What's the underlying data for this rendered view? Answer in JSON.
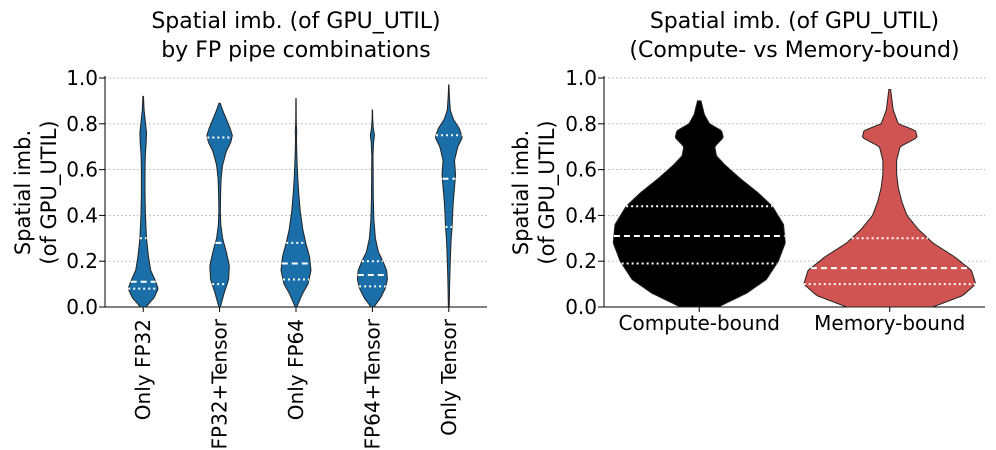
{
  "chart_data": [
    {
      "type": "violin",
      "title": [
        "Spatial imb. (of GPU_UTIL)",
        "by FP pipe combinations"
      ],
      "ylabel": [
        "Spatial imb.",
        "(of GPU_UTIL)"
      ],
      "ylim": [
        0,
        1.0
      ],
      "yticks": [
        "0.0",
        "0.2",
        "0.4",
        "0.6",
        "0.8",
        "1.0"
      ],
      "grid": "horizontal-dotted",
      "color": "#1b6fa8",
      "categories": [
        "Only FP32",
        "FP32+Tensor",
        "Only FP64",
        "FP64+Tensor",
        "Only Tensor"
      ],
      "violins": [
        {
          "name": "Only FP32",
          "min": 0.0,
          "max": 0.92,
          "q1": 0.08,
          "median": 0.11,
          "q3": 0.3,
          "profile": [
            [
              0.0,
              0.18
            ],
            [
              0.04,
              0.72
            ],
            [
              0.08,
              1.0
            ],
            [
              0.12,
              0.78
            ],
            [
              0.16,
              0.5
            ],
            [
              0.22,
              0.35
            ],
            [
              0.3,
              0.22
            ],
            [
              0.4,
              0.15
            ],
            [
              0.5,
              0.12
            ],
            [
              0.6,
              0.12
            ],
            [
              0.66,
              0.14
            ],
            [
              0.72,
              0.2
            ],
            [
              0.76,
              0.22
            ],
            [
              0.8,
              0.16
            ],
            [
              0.86,
              0.06
            ],
            [
              0.92,
              0.02
            ]
          ]
        },
        {
          "name": "FP32+Tensor",
          "min": 0.0,
          "max": 0.89,
          "q1": 0.1,
          "median": 0.28,
          "q3": 0.74,
          "profile": [
            [
              0.0,
              0.05
            ],
            [
              0.06,
              0.3
            ],
            [
              0.12,
              0.6
            ],
            [
              0.18,
              0.65
            ],
            [
              0.24,
              0.45
            ],
            [
              0.3,
              0.2
            ],
            [
              0.36,
              0.08
            ],
            [
              0.42,
              0.05
            ],
            [
              0.5,
              0.07
            ],
            [
              0.56,
              0.1
            ],
            [
              0.62,
              0.2
            ],
            [
              0.68,
              0.45
            ],
            [
              0.72,
              0.75
            ],
            [
              0.75,
              0.85
            ],
            [
              0.78,
              0.7
            ],
            [
              0.82,
              0.45
            ],
            [
              0.86,
              0.2
            ],
            [
              0.89,
              0.04
            ]
          ]
        },
        {
          "name": "Only FP64",
          "min": 0.0,
          "max": 0.91,
          "q1": 0.12,
          "median": 0.19,
          "q3": 0.28,
          "profile": [
            [
              0.0,
              0.05
            ],
            [
              0.06,
              0.45
            ],
            [
              0.1,
              0.8
            ],
            [
              0.16,
              1.0
            ],
            [
              0.22,
              0.9
            ],
            [
              0.28,
              0.65
            ],
            [
              0.34,
              0.45
            ],
            [
              0.42,
              0.28
            ],
            [
              0.5,
              0.18
            ],
            [
              0.56,
              0.12
            ],
            [
              0.62,
              0.08
            ],
            [
              0.68,
              0.05
            ],
            [
              0.74,
              0.03
            ],
            [
              0.76,
              0.05
            ],
            [
              0.8,
              0.02
            ],
            [
              0.91,
              0.01
            ]
          ]
        },
        {
          "name": "FP64+Tensor",
          "min": 0.0,
          "max": 0.86,
          "q1": 0.09,
          "median": 0.14,
          "q3": 0.2,
          "profile": [
            [
              0.0,
              0.1
            ],
            [
              0.04,
              0.55
            ],
            [
              0.08,
              0.85
            ],
            [
              0.12,
              1.0
            ],
            [
              0.16,
              0.95
            ],
            [
              0.2,
              0.7
            ],
            [
              0.24,
              0.4
            ],
            [
              0.3,
              0.2
            ],
            [
              0.38,
              0.1
            ],
            [
              0.48,
              0.06
            ],
            [
              0.58,
              0.05
            ],
            [
              0.66,
              0.04
            ],
            [
              0.72,
              0.08
            ],
            [
              0.75,
              0.14
            ],
            [
              0.78,
              0.06
            ],
            [
              0.82,
              0.02
            ],
            [
              0.86,
              0.01
            ]
          ]
        },
        {
          "name": "Only Tensor",
          "min": 0.0,
          "max": 0.97,
          "q1": 0.35,
          "median": 0.56,
          "q3": 0.75,
          "profile": [
            [
              0.0,
              0.03
            ],
            [
              0.08,
              0.05
            ],
            [
              0.16,
              0.08
            ],
            [
              0.24,
              0.12
            ],
            [
              0.3,
              0.16
            ],
            [
              0.35,
              0.22
            ],
            [
              0.4,
              0.25
            ],
            [
              0.46,
              0.3
            ],
            [
              0.52,
              0.38
            ],
            [
              0.58,
              0.45
            ],
            [
              0.64,
              0.38
            ],
            [
              0.7,
              0.6
            ],
            [
              0.74,
              0.9
            ],
            [
              0.78,
              0.7
            ],
            [
              0.82,
              0.3
            ],
            [
              0.86,
              0.1
            ],
            [
              0.92,
              0.04
            ],
            [
              0.97,
              0.01
            ]
          ]
        }
      ]
    },
    {
      "type": "violin",
      "title": [
        "Spatial imb. (of GPU_UTIL)",
        "(Compute- vs Memory-bound)"
      ],
      "ylabel": [
        "Spatial imb.",
        "(of GPU_UTIL)"
      ],
      "ylim": [
        0,
        1.0
      ],
      "yticks": [
        "0.0",
        "0.2",
        "0.4",
        "0.6",
        "0.8",
        "1.0"
      ],
      "grid": "horizontal-dotted",
      "categories": [
        "Compute-bound",
        "Memory-bound"
      ],
      "violins": [
        {
          "name": "Compute-bound",
          "color": "#000000",
          "min": 0.0,
          "max": 0.9,
          "q1": 0.19,
          "median": 0.31,
          "q3": 0.44,
          "profile": [
            [
              0.0,
              0.22
            ],
            [
              0.06,
              0.55
            ],
            [
              0.12,
              0.78
            ],
            [
              0.2,
              0.92
            ],
            [
              0.28,
              1.0
            ],
            [
              0.36,
              0.98
            ],
            [
              0.44,
              0.85
            ],
            [
              0.5,
              0.68
            ],
            [
              0.56,
              0.48
            ],
            [
              0.62,
              0.3
            ],
            [
              0.66,
              0.2
            ],
            [
              0.7,
              0.18
            ],
            [
              0.74,
              0.28
            ],
            [
              0.77,
              0.26
            ],
            [
              0.8,
              0.12
            ],
            [
              0.84,
              0.06
            ],
            [
              0.9,
              0.02
            ]
          ]
        },
        {
          "name": "Memory-bound",
          "color": "#d05552",
          "min": 0.0,
          "max": 0.95,
          "q1": 0.1,
          "median": 0.17,
          "q3": 0.3,
          "profile": [
            [
              0.0,
              0.5
            ],
            [
              0.05,
              0.85
            ],
            [
              0.1,
              1.0
            ],
            [
              0.16,
              0.95
            ],
            [
              0.22,
              0.75
            ],
            [
              0.28,
              0.5
            ],
            [
              0.34,
              0.33
            ],
            [
              0.4,
              0.2
            ],
            [
              0.46,
              0.14
            ],
            [
              0.52,
              0.1
            ],
            [
              0.58,
              0.08
            ],
            [
              0.64,
              0.08
            ],
            [
              0.7,
              0.12
            ],
            [
              0.74,
              0.32
            ],
            [
              0.77,
              0.3
            ],
            [
              0.8,
              0.1
            ],
            [
              0.86,
              0.04
            ],
            [
              0.95,
              0.01
            ]
          ]
        }
      ]
    }
  ]
}
